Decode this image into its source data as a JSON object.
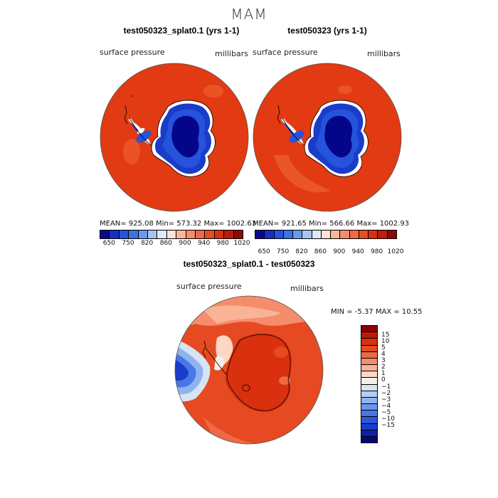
{
  "suptitle": "MAM",
  "panels": [
    {
      "title": "test050323_splat0.1 (yrs 1-1)",
      "left_label": "surface pressure",
      "right_label": "millibars",
      "stats": "MEAN= 925.08   Min= 573.32   Max= 1002.63",
      "map_kind": "absolute",
      "colorbar": {
        "colors": [
          "#0a0a8c",
          "#1a2fc2",
          "#2553dc",
          "#3d72e6",
          "#6a98ee",
          "#a6c3f2",
          "#dce9f8",
          "#fbe3d6",
          "#f7b69c",
          "#f28c6c",
          "#ec6a48",
          "#e44d26",
          "#d93014",
          "#b91e0a",
          "#8b0c04"
        ],
        "tick_labels": [
          "650",
          "750",
          "820",
          "860",
          "900",
          "940",
          "980",
          "1020"
        ]
      }
    },
    {
      "title": "test050323 (yrs 1-1)",
      "left_label": "surface pressure",
      "right_label": "millibars",
      "stats": "MEAN= 921.65   Min= 566.66   Max= 1002.93",
      "map_kind": "absolute",
      "colorbar": {
        "colors": [
          "#0a0a8c",
          "#1a2fc2",
          "#2553dc",
          "#3d72e6",
          "#6a98ee",
          "#a6c3f2",
          "#dce9f8",
          "#fbe3d6",
          "#f7b69c",
          "#f28c6c",
          "#ec6a48",
          "#e44d26",
          "#d93014",
          "#b91e0a",
          "#8b0c04"
        ],
        "tick_labels": [
          "650",
          "750",
          "820",
          "860",
          "900",
          "940",
          "980",
          "1020"
        ]
      }
    }
  ],
  "diff": {
    "title": "test050323_splat0.1 - test050323",
    "left_label": "surface pressure",
    "right_label": "millibars",
    "stats": "MIN =   -5.37  MAX =   10.55",
    "colorbar": {
      "colors": [
        "#8b0000",
        "#b81a0a",
        "#d9300f",
        "#e64a22",
        "#ee6a45",
        "#f58d6c",
        "#f9b496",
        "#fcd7c4",
        "#f3eeee",
        "#d6e4f6",
        "#b4cdf2",
        "#8fb3ee",
        "#6a96ea",
        "#4678e6",
        "#2a58dc",
        "#1a3cc8",
        "#0f1fa6",
        "#06067a"
      ],
      "tick_labels": [
        "15",
        "10",
        "5",
        "4",
        "3",
        "2",
        "1",
        "0",
        "−1",
        "−2",
        "−3",
        "−4",
        "−5",
        "−10",
        "−15"
      ]
    }
  },
  "colors": {
    "background": "#ffffff",
    "ocean_red": "#e23a12",
    "deep_blue": "#05058a",
    "coast": "#000000"
  }
}
